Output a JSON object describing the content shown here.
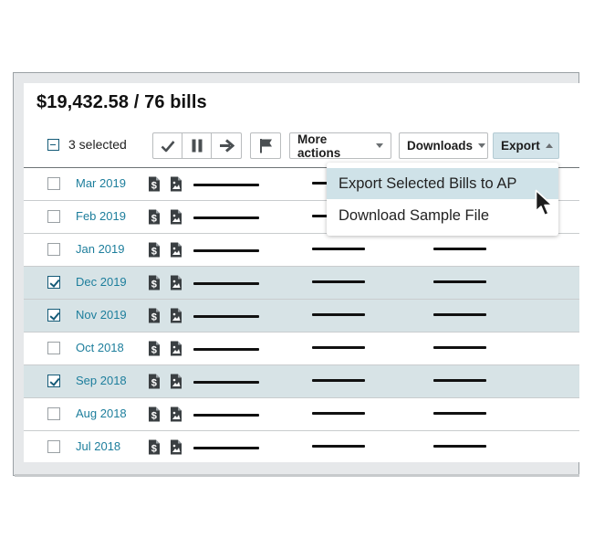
{
  "summary": {
    "amount": "$19,432.58",
    "separator": " / ",
    "bills": "76 bills"
  },
  "toolbar": {
    "selected_label": "3 selected",
    "more_actions_label": "More actions",
    "downloads_label": "Downloads",
    "export_label": "Export",
    "icons": [
      "check-icon",
      "pause-icon",
      "arrow-right-icon",
      "flag-icon"
    ]
  },
  "export_menu": {
    "items": [
      {
        "label": "Export Selected Bills to AP",
        "highlighted": true
      },
      {
        "label": "Download Sample File",
        "highlighted": false
      }
    ]
  },
  "rows": [
    {
      "date": "Mar 2019",
      "checked": false
    },
    {
      "date": "Feb 2019",
      "checked": false
    },
    {
      "date": "Jan 2019",
      "checked": false
    },
    {
      "date": "Dec 2019",
      "checked": true
    },
    {
      "date": "Nov 2019",
      "checked": true
    },
    {
      "date": "Oct 2018",
      "checked": false
    },
    {
      "date": "Sep 2018",
      "checked": true
    },
    {
      "date": "Aug 2018",
      "checked": false
    },
    {
      "date": "Jul 2018",
      "checked": false
    }
  ],
  "colors": {
    "accent": "#1d7e9c",
    "selected_row": "#d7e3e6",
    "export_active": "#d3e4ea",
    "checkbox": "#155b78"
  }
}
